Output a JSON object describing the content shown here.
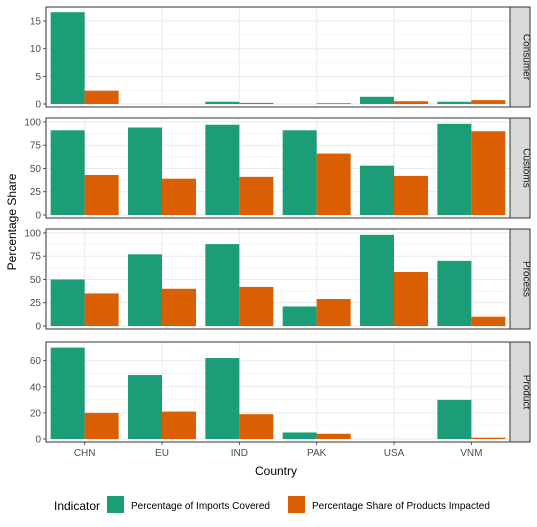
{
  "chart_data": {
    "type": "bar",
    "xlabel": "Country",
    "ylabel": "Percentage Share",
    "categories": [
      "CHN",
      "EU",
      "IND",
      "PAK",
      "USA",
      "VNM"
    ],
    "legend": {
      "title": "Indicator",
      "position": "bottom",
      "entries": [
        "Percentage of Imports Covered",
        "Percentage Share of Products Impacted"
      ]
    },
    "colors": {
      "imports": "#1b9e77",
      "products": "#d95f02"
    },
    "grid": true,
    "panels": [
      {
        "name": "Consumer",
        "ylim": [
          0,
          17
        ],
        "yticks": [
          0,
          5,
          10,
          15
        ],
        "series": [
          {
            "name": "Percentage of Imports Covered",
            "values": [
              16.6,
              0,
              0.4,
              0,
              1.3,
              0.4
            ]
          },
          {
            "name": "Percentage Share of Products Impacted",
            "values": [
              2.4,
              0,
              0.2,
              0.1,
              0.5,
              0.7
            ]
          }
        ]
      },
      {
        "name": "Customs",
        "ylim": [
          0,
          101
        ],
        "yticks": [
          0,
          25,
          50,
          75,
          100
        ],
        "series": [
          {
            "name": "Percentage of Imports Covered",
            "values": [
              91,
              94,
              97,
              91,
              53,
              98
            ]
          },
          {
            "name": "Percentage Share of Products Impacted",
            "values": [
              43,
              39,
              41,
              66,
              42,
              90
            ]
          }
        ]
      },
      {
        "name": "Process",
        "ylim": [
          0,
          101
        ],
        "yticks": [
          0,
          25,
          50,
          75,
          100
        ],
        "series": [
          {
            "name": "Percentage of Imports Covered",
            "values": [
              50,
              77,
              88,
              21,
              98,
              70
            ]
          },
          {
            "name": "Percentage Share of Products Impacted",
            "values": [
              35,
              40,
              42,
              29,
              58,
              10
            ]
          }
        ]
      },
      {
        "name": "Product",
        "ylim": [
          0,
          72
        ],
        "yticks": [
          0,
          20,
          40,
          60
        ],
        "series": [
          {
            "name": "Percentage of Imports Covered",
            "values": [
              70,
              49,
              62,
              5,
              0,
              30
            ]
          },
          {
            "name": "Percentage Share of Products Impacted",
            "values": [
              20,
              21,
              19,
              4,
              0,
              1
            ]
          }
        ]
      }
    ]
  }
}
